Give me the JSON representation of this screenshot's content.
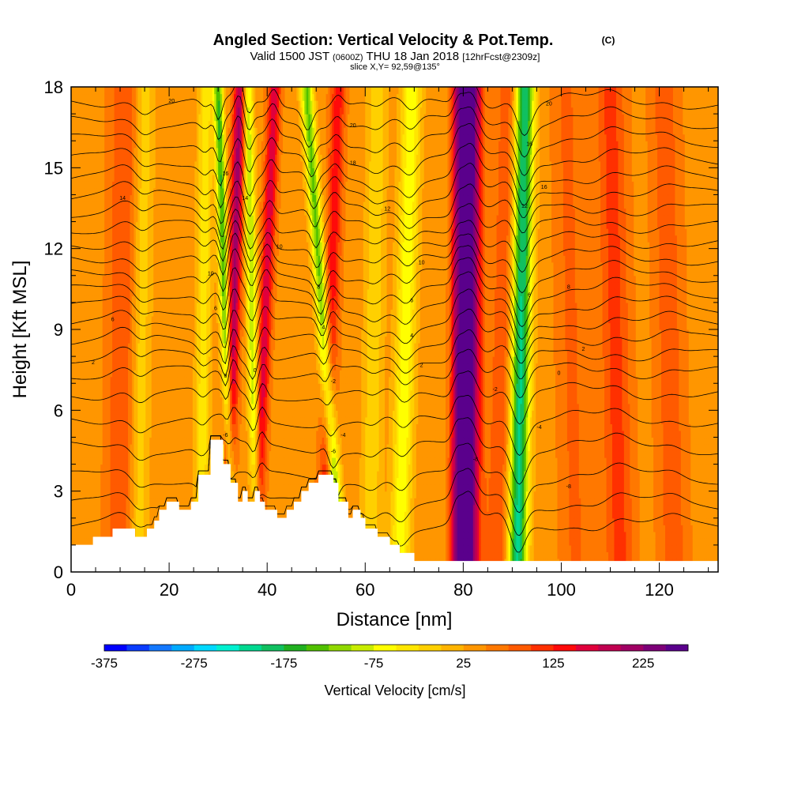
{
  "header": {
    "title": "Angled Section: Vertical Velocity & Pot.Temp.",
    "title_tag": "(C)",
    "valid_prefix": "Valid 1500 JST",
    "valid_utc": "(0600Z)",
    "valid_date": "THU 18 Jan 2018",
    "forecast": "[12hrFcst@2309z]",
    "slice": "slice X,Y= 92,59@135°"
  },
  "chart_data": {
    "type": "heatmap",
    "xlabel": "Distance [nm]",
    "ylabel": "Height [Kft MSL]",
    "xlim": [
      0,
      132
    ],
    "ylim": [
      0,
      18
    ],
    "x_ticks": [
      0,
      20,
      40,
      60,
      80,
      100,
      120
    ],
    "y_ticks": [
      0,
      3,
      6,
      9,
      12,
      15,
      18
    ],
    "colorbar": {
      "label": "Vertical Velocity [cm/s]",
      "min": -375,
      "step": 25,
      "tick_values": [
        "-375",
        "-275",
        "-175",
        "-75",
        "25",
        "125",
        "225"
      ],
      "colors": [
        "#0000ff",
        "#0a3cff",
        "#1478ff",
        "#00aaff",
        "#00d8ff",
        "#00f0d0",
        "#00d890",
        "#10c060",
        "#20b020",
        "#50c000",
        "#90d800",
        "#c8ec00",
        "#ffff00",
        "#ffe600",
        "#ffd000",
        "#ffb400",
        "#ff9600",
        "#ff7800",
        "#ff5a00",
        "#ff3000",
        "#ff0a0a",
        "#e0003c",
        "#c00050",
        "#a00064",
        "#7d0078",
        "#5a008c"
      ]
    },
    "background_value_cm_s": 40,
    "terrain": [
      [
        0,
        1.0
      ],
      [
        4.5,
        1.0
      ],
      [
        4.5,
        1.3
      ],
      [
        8.5,
        1.3
      ],
      [
        8.5,
        1.6
      ],
      [
        13,
        1.6
      ],
      [
        13,
        1.3
      ],
      [
        15.5,
        1.3
      ],
      [
        15.5,
        1.6
      ],
      [
        17,
        1.6
      ],
      [
        17,
        1.9
      ],
      [
        18,
        1.9
      ],
      [
        18,
        2.3
      ],
      [
        19.5,
        2.3
      ],
      [
        19.5,
        2.6
      ],
      [
        22,
        2.6
      ],
      [
        22,
        2.3
      ],
      [
        24.5,
        2.3
      ],
      [
        24.5,
        2.6
      ],
      [
        26,
        2.6
      ],
      [
        26,
        3.6
      ],
      [
        28.5,
        3.6
      ],
      [
        28.5,
        4.9
      ],
      [
        31,
        4.9
      ],
      [
        31,
        4.0
      ],
      [
        32.5,
        4.0
      ],
      [
        32.5,
        3.3
      ],
      [
        34,
        3.3
      ],
      [
        34,
        2.6
      ],
      [
        35,
        2.6
      ],
      [
        35,
        3.0
      ],
      [
        36,
        3.0
      ],
      [
        36,
        2.6
      ],
      [
        37.5,
        2.6
      ],
      [
        37.5,
        3.0
      ],
      [
        38.5,
        3.0
      ],
      [
        38.5,
        2.6
      ],
      [
        39.5,
        2.6
      ],
      [
        39.5,
        2.3
      ],
      [
        42,
        2.3
      ],
      [
        42,
        2.0
      ],
      [
        44,
        2.0
      ],
      [
        44,
        2.3
      ],
      [
        45.5,
        2.3
      ],
      [
        45.5,
        2.6
      ],
      [
        47,
        2.6
      ],
      [
        47,
        3.0
      ],
      [
        48.5,
        3.0
      ],
      [
        48.5,
        3.3
      ],
      [
        50.5,
        3.3
      ],
      [
        50.5,
        3.6
      ],
      [
        53.5,
        3.6
      ],
      [
        53.5,
        3.3
      ],
      [
        54.5,
        3.3
      ],
      [
        54.5,
        2.6
      ],
      [
        56.5,
        2.6
      ],
      [
        56.5,
        2.0
      ],
      [
        57.5,
        2.0
      ],
      [
        57.5,
        2.3
      ],
      [
        59,
        2.3
      ],
      [
        59,
        2.0
      ],
      [
        60,
        2.0
      ],
      [
        60,
        1.6
      ],
      [
        62.5,
        1.6
      ],
      [
        62.5,
        1.3
      ],
      [
        65,
        1.3
      ],
      [
        65,
        1.0
      ],
      [
        67,
        1.0
      ],
      [
        67,
        0.7
      ],
      [
        70,
        0.7
      ],
      [
        70,
        0.4
      ],
      [
        132,
        0.4
      ]
    ],
    "updraft_bands": [
      {
        "x_top": 34.5,
        "x_bottom": 31.5,
        "peak_cm_s": 170,
        "width_nm": 1.3
      },
      {
        "x_top": 41.5,
        "x_bottom": 37.5,
        "peak_cm_s": 130,
        "width_nm": 1.3
      },
      {
        "x_top": 54.5,
        "x_bottom": 51.5,
        "peak_cm_s": 100,
        "width_nm": 1.5
      },
      {
        "x_top": 81.5,
        "x_bottom": 81.0,
        "peak_cm_s": 240,
        "width_nm": 2.2
      },
      {
        "x_top": 79.0,
        "x_bottom": 78.5,
        "peak_cm_s": 130,
        "width_nm": 1.3
      },
      {
        "x_top": 89.5,
        "x_bottom": 87.0,
        "peak_cm_s": 60,
        "width_nm": 2.5
      },
      {
        "x_top": 11.0,
        "x_bottom": 10.0,
        "peak_cm_s": 60,
        "width_nm": 3.0
      },
      {
        "x_top": 110.0,
        "x_bottom": 112.0,
        "peak_cm_s": 70,
        "width_nm": 3.0
      },
      {
        "x_top": 121.0,
        "x_bottom": 123.0,
        "peak_cm_s": 50,
        "width_nm": 3.0
      },
      {
        "x_top": 101.0,
        "x_bottom": 103.0,
        "peak_cm_s": 40,
        "width_nm": 3.0
      }
    ],
    "downdraft_bands": [
      {
        "x_top": 30.0,
        "x_bottom": 33.0,
        "peak_cm_s": -190,
        "width_nm": 1.0
      },
      {
        "x_top": 36.0,
        "x_bottom": 38.0,
        "peak_cm_s": -140,
        "width_nm": 1.1
      },
      {
        "x_top": 48.0,
        "x_bottom": 55.0,
        "peak_cm_s": -170,
        "width_nm": 1.3
      },
      {
        "x_top": 69.5,
        "x_bottom": 67.0,
        "peak_cm_s": -110,
        "width_nm": 2.0
      },
      {
        "x_top": 92.5,
        "x_bottom": 91.0,
        "peak_cm_s": -250,
        "width_nm": 2.0
      },
      {
        "x_top": 15.0,
        "x_bottom": 13.5,
        "peak_cm_s": -60,
        "width_nm": 2.0
      },
      {
        "x_top": 27.5,
        "x_bottom": 26.5,
        "peak_cm_s": -80,
        "width_nm": 1.5
      },
      {
        "x_top": 62.5,
        "x_bottom": 61.0,
        "peak_cm_s": -60,
        "width_nm": 2.0
      }
    ],
    "isentropes_kft": [
      1.7,
      2.5,
      3.5,
      4.6,
      5.6,
      6.6,
      7.4,
      8.0,
      8.6,
      9.2,
      9.8,
      10.4,
      11.0,
      11.6,
      12.2,
      12.8,
      13.4,
      14.0,
      14.6,
      15.3,
      16.0,
      16.7,
      17.4
    ],
    "contour_labels": [
      {
        "x": 20.5,
        "y": 17.5,
        "text": "20"
      },
      {
        "x": 57.5,
        "y": 16.6,
        "text": "20"
      },
      {
        "x": 97.5,
        "y": 17.4,
        "text": "20"
      },
      {
        "x": 57.5,
        "y": 15.2,
        "text": "18"
      },
      {
        "x": 93.5,
        "y": 15.9,
        "text": "16"
      },
      {
        "x": 31.5,
        "y": 14.8,
        "text": "16"
      },
      {
        "x": 96.5,
        "y": 14.3,
        "text": "16"
      },
      {
        "x": 10.5,
        "y": 13.9,
        "text": "14"
      },
      {
        "x": 35.5,
        "y": 13.9,
        "text": "14"
      },
      {
        "x": 64.5,
        "y": 13.5,
        "text": "12"
      },
      {
        "x": 92.5,
        "y": 13.6,
        "text": "12"
      },
      {
        "x": 42.5,
        "y": 12.1,
        "text": "10"
      },
      {
        "x": 71.5,
        "y": 11.5,
        "text": "10"
      },
      {
        "x": 28.5,
        "y": 11.1,
        "text": "10"
      },
      {
        "x": 50.5,
        "y": 10.6,
        "text": "8"
      },
      {
        "x": 101.5,
        "y": 10.6,
        "text": "8"
      },
      {
        "x": 69.5,
        "y": 10.1,
        "text": "6"
      },
      {
        "x": 93.5,
        "y": 10.3,
        "text": "6"
      },
      {
        "x": 29.5,
        "y": 9.8,
        "text": "6"
      },
      {
        "x": 8.5,
        "y": 9.4,
        "text": "6"
      },
      {
        "x": 51.5,
        "y": 9.1,
        "text": "4"
      },
      {
        "x": 69.5,
        "y": 8.8,
        "text": "4"
      },
      {
        "x": 104.5,
        "y": 8.3,
        "text": "2"
      },
      {
        "x": 4.5,
        "y": 7.8,
        "text": "2"
      },
      {
        "x": 71.5,
        "y": 7.7,
        "text": "2"
      },
      {
        "x": 37.5,
        "y": 7.5,
        "text": "0"
      },
      {
        "x": 31.5,
        "y": 7.3,
        "text": "0"
      },
      {
        "x": 99.5,
        "y": 7.4,
        "text": "0"
      },
      {
        "x": 53.5,
        "y": 7.1,
        "text": "-2"
      },
      {
        "x": 86.5,
        "y": 6.8,
        "text": "-2"
      },
      {
        "x": 95.5,
        "y": 5.4,
        "text": "-4"
      },
      {
        "x": 55.5,
        "y": 5.1,
        "text": "-4"
      },
      {
        "x": 31.5,
        "y": 5.1,
        "text": "-6"
      },
      {
        "x": 53.5,
        "y": 4.5,
        "text": "-6"
      },
      {
        "x": 82.5,
        "y": 4.2,
        "text": "-8"
      },
      {
        "x": 101.5,
        "y": 3.2,
        "text": "-8"
      }
    ]
  }
}
